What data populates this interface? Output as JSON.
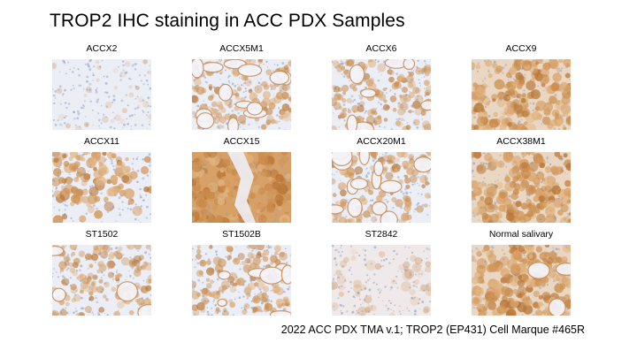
{
  "title": "TROP2 IHC staining in ACC PDX Samples",
  "caption": "2022 ACC PDX TMA v.1; TROP2 (EP431) Cell Marque #465R",
  "samples": [
    {
      "label": "ACCX2",
      "stain": "low"
    },
    {
      "label": "ACCX5M1",
      "stain": "moderate"
    },
    {
      "label": "ACCX6",
      "stain": "moderate"
    },
    {
      "label": "ACCX9",
      "stain": "high"
    },
    {
      "label": "ACCX11",
      "stain": "moderate"
    },
    {
      "label": "ACCX15",
      "stain": "high"
    },
    {
      "label": "ACCX20M1",
      "stain": "moderate"
    },
    {
      "label": "ACCX38M1",
      "stain": "high"
    },
    {
      "label": "ST1502",
      "stain": "moderate"
    },
    {
      "label": "ST1502B",
      "stain": "moderate"
    },
    {
      "label": "ST2842",
      "stain": "low"
    },
    {
      "label": "Normal salivary",
      "stain": "high"
    }
  ],
  "colors": {
    "background_tissue": "#e8ecf4",
    "stain_brown": "#c98a4a",
    "stain_dark": "#a8652c",
    "hematoxylin": "#b8c2dc"
  }
}
